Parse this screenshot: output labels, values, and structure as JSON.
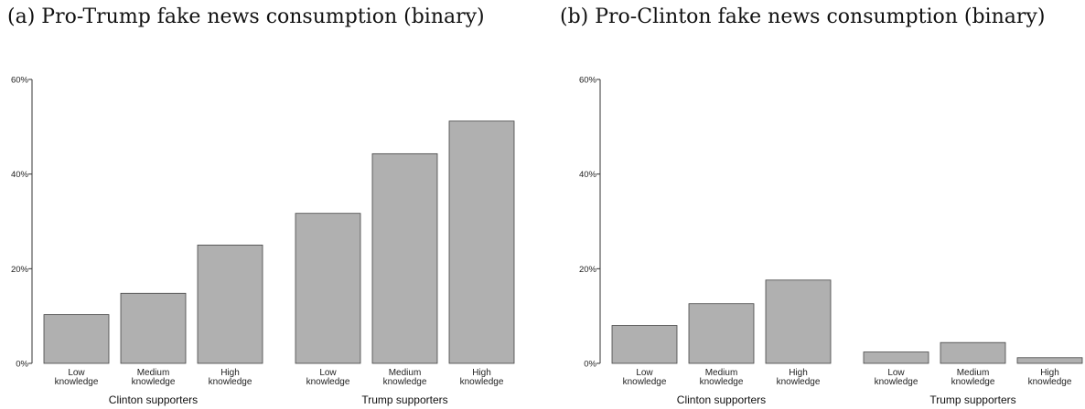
{
  "chart_data": [
    {
      "type": "bar",
      "title": "(a) Pro-Trump fake news consumption (binary)",
      "groups": [
        "Clinton supporters",
        "Trump supporters"
      ],
      "categories": [
        "Low knowledge",
        "Medium knowledge",
        "High knowledge"
      ],
      "category_lines": [
        [
          "Low",
          "knowledge"
        ],
        [
          "Medium",
          "knowledge"
        ],
        [
          "High",
          "knowledge"
        ]
      ],
      "values": [
        [
          10.3,
          14.8,
          25.0
        ],
        [
          31.7,
          44.3,
          51.2
        ]
      ],
      "ylim": [
        0,
        60
      ],
      "yticks": [
        "0%",
        "20%",
        "40%",
        "60%"
      ],
      "bar_color": "#b0b0b0"
    },
    {
      "type": "bar",
      "title": "(b) Pro-Clinton fake news consumption (binary)",
      "groups": [
        "Clinton supporters",
        "Trump supporters"
      ],
      "categories": [
        "Low knowledge",
        "Medium knowledge",
        "High knowledge"
      ],
      "category_lines": [
        [
          "Low",
          "knowledge"
        ],
        [
          "Medium",
          "knowledge"
        ],
        [
          "High",
          "knowledge"
        ]
      ],
      "values": [
        [
          8.0,
          12.6,
          17.6
        ],
        [
          2.4,
          4.4,
          1.2
        ]
      ],
      "ylim": [
        0,
        60
      ],
      "yticks": [
        "0%",
        "20%",
        "40%",
        "60%"
      ],
      "bar_color": "#b0b0b0"
    }
  ]
}
